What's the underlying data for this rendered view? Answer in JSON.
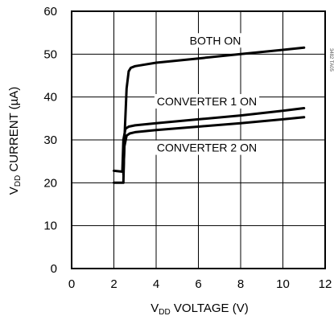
{
  "chart_data": {
    "type": "line",
    "title": "",
    "xlabel_prefix": "V",
    "xlabel_sub": "DD",
    "xlabel_suffix": " VOLTAGE (V)",
    "ylabel_prefix": "V",
    "ylabel_sub": "DD",
    "ylabel_suffix": " CURRENT (µA)",
    "xlim": [
      0,
      12
    ],
    "ylim": [
      0,
      60
    ],
    "xticks": [
      "0",
      "2",
      "4",
      "6",
      "8",
      "10",
      "12"
    ],
    "yticks": [
      "0",
      "10",
      "20",
      "30",
      "40",
      "50",
      "60"
    ],
    "grid": true,
    "side_note": "3482 TA05",
    "series": [
      {
        "name": "BOTH ON",
        "x": [
          2.0,
          2.45,
          2.5,
          2.6,
          2.7,
          2.8,
          3.0,
          4.0,
          6.0,
          8.0,
          10.0,
          11.0
        ],
        "y": [
          20.0,
          20.0,
          30.0,
          42.0,
          46.0,
          46.8,
          47.2,
          48.0,
          49.0,
          50.0,
          51.0,
          51.5
        ]
      },
      {
        "name": "CONVERTER 1 ON",
        "x": [
          2.0,
          2.4,
          2.45,
          2.55,
          2.7,
          3.0,
          4.0,
          6.0,
          8.0,
          10.0,
          11.0
        ],
        "y": [
          22.8,
          22.6,
          30.0,
          32.6,
          33.1,
          33.4,
          33.9,
          34.8,
          35.7,
          36.8,
          37.4
        ]
      },
      {
        "name": "CONVERTER 2 ON",
        "x": [
          2.45,
          2.5,
          2.6,
          2.75,
          3.0,
          4.0,
          6.0,
          8.0,
          10.0,
          11.0
        ],
        "y": [
          22.0,
          28.5,
          31.0,
          31.5,
          31.8,
          32.3,
          33.1,
          33.9,
          34.8,
          35.3
        ]
      }
    ],
    "labels": [
      {
        "text": "BOTH ON",
        "x": 6.8,
        "y": 53.2
      },
      {
        "text": "CONVERTER 1 ON",
        "x": 6.4,
        "y": 39.0
      },
      {
        "text": "CONVERTER 2 ON",
        "x": 6.4,
        "y": 28.2
      }
    ]
  }
}
